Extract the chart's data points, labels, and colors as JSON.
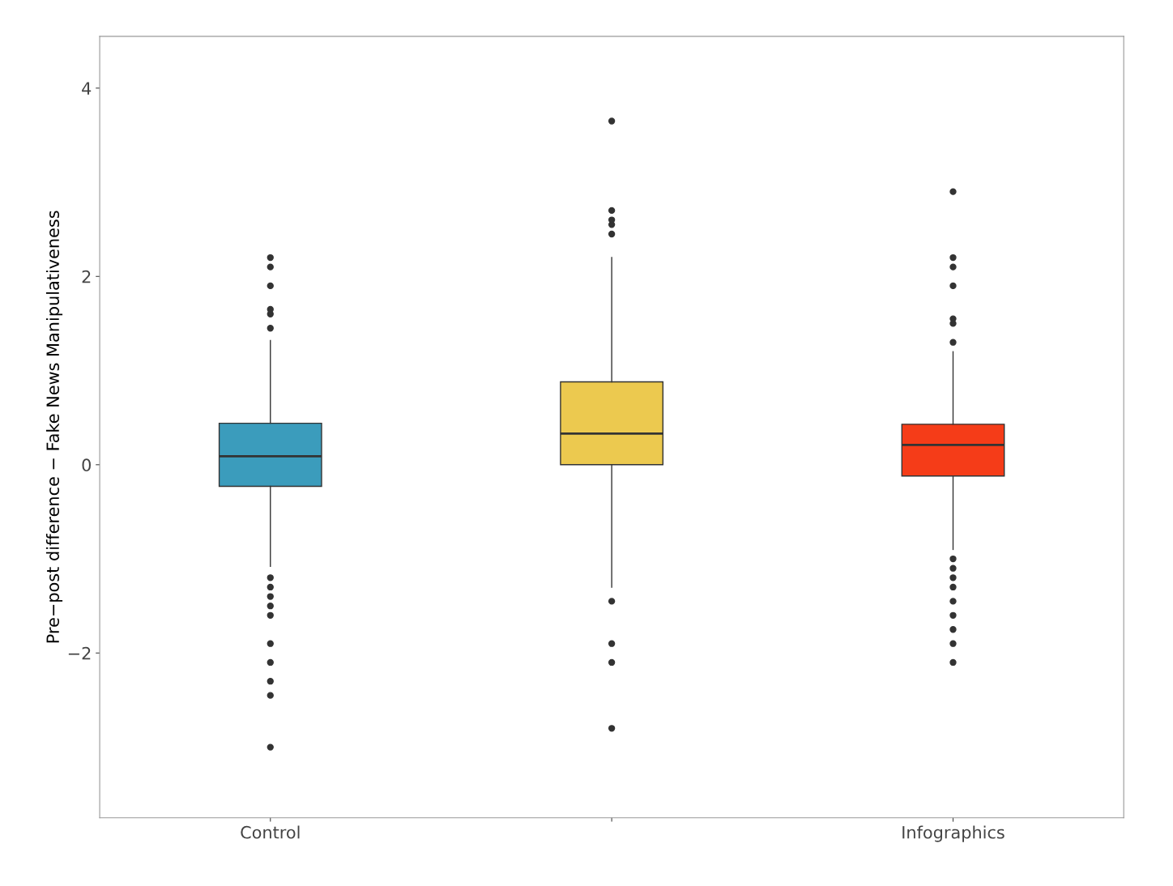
{
  "chart_data": {
    "type": "box",
    "ylabel": "Pre−post difference − Fake News Manipulativeness",
    "categories": [
      "Control",
      null,
      "Infographics"
    ],
    "colors": [
      "#3b9cbc",
      "#ecc94f",
      "#f53c18"
    ],
    "boxes": [
      {
        "low": -1.08,
        "q1": -0.23,
        "median": 0.09,
        "q3": 0.44,
        "high": 1.32,
        "outliers": [
          1.45,
          1.6,
          1.65,
          1.9,
          2.1,
          2.2,
          -1.2,
          -1.3,
          -1.4,
          -1.5,
          -1.6,
          -1.9,
          -2.1,
          -2.3,
          -2.45,
          -3.0
        ]
      },
      {
        "low": -1.3,
        "q1": 0.0,
        "median": 0.33,
        "q3": 0.88,
        "high": 2.2,
        "outliers": [
          2.45,
          2.55,
          2.6,
          2.7,
          3.65,
          -1.45,
          -1.9,
          -2.1,
          -2.8
        ]
      },
      {
        "low": -0.9,
        "q1": -0.12,
        "median": 0.21,
        "q3": 0.43,
        "high": 1.2,
        "outliers": [
          1.3,
          1.5,
          1.55,
          1.9,
          2.1,
          2.2,
          2.9,
          -1.0,
          -1.1,
          -1.2,
          -1.3,
          -1.45,
          -1.6,
          -1.75,
          -1.9,
          -2.1
        ]
      }
    ],
    "ylim": [
      -3.75,
      4.55
    ],
    "yticks": [
      {
        "value": -2,
        "label": "−2"
      },
      0,
      2,
      4
    ],
    "grid": false
  }
}
